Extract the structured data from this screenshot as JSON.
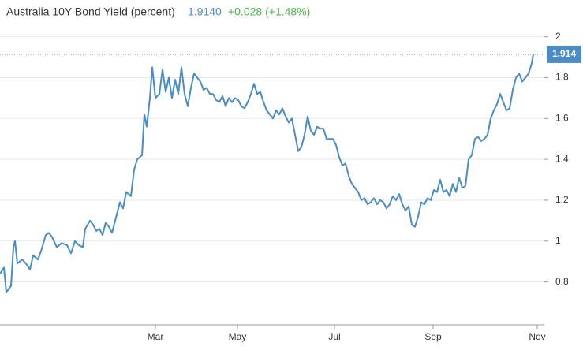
{
  "chart_data": {
    "type": "line",
    "title": "Australia 10Y Bond Yield (percent)",
    "price": "1.9140",
    "change": "+0.028 (+1.48%)",
    "last_label": "1.914",
    "x": [
      0,
      2.5,
      4,
      7,
      8.5,
      9.5,
      11,
      14,
      17.5,
      19,
      21,
      24,
      26,
      29,
      31,
      33,
      36,
      39,
      42.5,
      45,
      47.5,
      50,
      52.5,
      54,
      57,
      59,
      61,
      63,
      65,
      67,
      69,
      71,
      74,
      76,
      78,
      80,
      83,
      85,
      87,
      90,
      91.5,
      93,
      95,
      96.5,
      98.5,
      101,
      103,
      105,
      107,
      109,
      111,
      113,
      115,
      117,
      119,
      121,
      123,
      125,
      127,
      129,
      131,
      133,
      135,
      137,
      139,
      141,
      143,
      145,
      147,
      149,
      151,
      153,
      155,
      157,
      159,
      161,
      163,
      165,
      167,
      169,
      171,
      173,
      175,
      177,
      179,
      181,
      183,
      185,
      187,
      189,
      191,
      193,
      195,
      197,
      199,
      201,
      203,
      205,
      207,
      209,
      211,
      213,
      215,
      217,
      219,
      221,
      223,
      225,
      227,
      229,
      231,
      233,
      235,
      237,
      239,
      241,
      243,
      245,
      247,
      249,
      251,
      253,
      255,
      257,
      259,
      261,
      263,
      265,
      267,
      269,
      271,
      273,
      275,
      277,
      279,
      281,
      283,
      285,
      287,
      289,
      291,
      293,
      295,
      297,
      299,
      301,
      303,
      305,
      307,
      309,
      311,
      313,
      315,
      317,
      319,
      321,
      323,
      325,
      327,
      329,
      331,
      333,
      335,
      337,
      338
    ],
    "series": [
      {
        "name": "Australia 10Y",
        "color": "#4a8cc6",
        "values": [
          0.84,
          0.87,
          0.75,
          0.78,
          0.97,
          1.0,
          0.89,
          0.91,
          0.88,
          0.86,
          0.93,
          0.91,
          0.95,
          1.03,
          1.04,
          1.02,
          0.97,
          0.99,
          0.98,
          0.94,
          1.0,
          0.98,
          0.97,
          1.06,
          1.1,
          1.08,
          1.05,
          1.06,
          1.03,
          1.09,
          1.07,
          1.04,
          1.13,
          1.19,
          1.16,
          1.24,
          1.22,
          1.35,
          1.4,
          1.42,
          1.62,
          1.56,
          1.7,
          1.85,
          1.7,
          1.72,
          1.84,
          1.73,
          1.8,
          1.7,
          1.79,
          1.72,
          1.85,
          1.72,
          1.66,
          1.75,
          1.82,
          1.8,
          1.78,
          1.74,
          1.75,
          1.72,
          1.72,
          1.69,
          1.68,
          1.71,
          1.66,
          1.7,
          1.68,
          1.7,
          1.69,
          1.66,
          1.65,
          1.68,
          1.72,
          1.77,
          1.72,
          1.73,
          1.68,
          1.64,
          1.62,
          1.6,
          1.64,
          1.62,
          1.65,
          1.61,
          1.58,
          1.6,
          1.52,
          1.44,
          1.46,
          1.52,
          1.61,
          1.54,
          1.52,
          1.56,
          1.55,
          1.55,
          1.5,
          1.5,
          1.5,
          1.47,
          1.41,
          1.37,
          1.38,
          1.32,
          1.28,
          1.26,
          1.24,
          1.2,
          1.21,
          1.18,
          1.19,
          1.21,
          1.18,
          1.2,
          1.19,
          1.16,
          1.18,
          1.22,
          1.2,
          1.23,
          1.18,
          1.15,
          1.17,
          1.08,
          1.07,
          1.12,
          1.19,
          1.18,
          1.21,
          1.2,
          1.25,
          1.24,
          1.3,
          1.24,
          1.25,
          1.22,
          1.28,
          1.24,
          1.31,
          1.26,
          1.27,
          1.4,
          1.42,
          1.5,
          1.51,
          1.49,
          1.5,
          1.52,
          1.6,
          1.64,
          1.67,
          1.72,
          1.68,
          1.64,
          1.65,
          1.74,
          1.8,
          1.82,
          1.78,
          1.8,
          1.82,
          1.87,
          1.914
        ]
      }
    ],
    "xlim": [
      0,
      345
    ],
    "xticks": [
      {
        "value": 98.5,
        "label": "Mar"
      },
      {
        "value": 150.5,
        "label": "May"
      },
      {
        "value": 212,
        "label": "Jul"
      },
      {
        "value": 274.5,
        "label": "Sep"
      },
      {
        "value": 340.5,
        "label": "Nov"
      }
    ],
    "ylim": [
      0.59,
      2.18
    ],
    "yticks": [
      0.8,
      1,
      1.2,
      1.4,
      1.6,
      1.8,
      2
    ],
    "grid": true
  }
}
